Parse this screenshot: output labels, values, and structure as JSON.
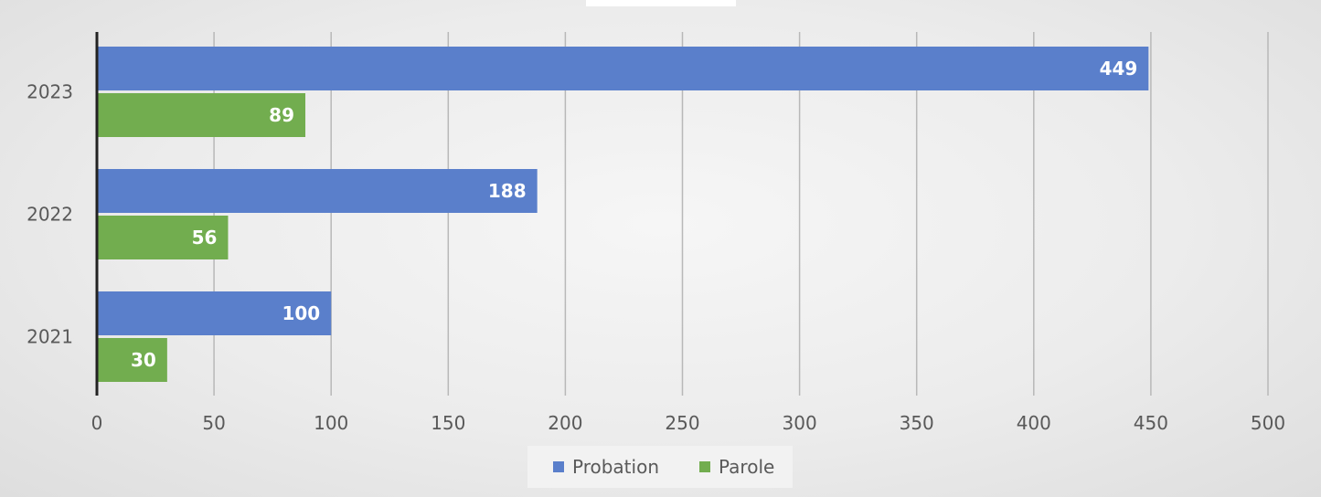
{
  "chart_data": {
    "type": "bar",
    "orientation": "horizontal",
    "categories": [
      "2023",
      "2022",
      "2021"
    ],
    "series": [
      {
        "name": "Probation",
        "values": [
          449,
          188,
          100
        ],
        "color": "#5a7fcb"
      },
      {
        "name": "Parole",
        "values": [
          89,
          56,
          30
        ],
        "color": "#72ad4f"
      }
    ],
    "xlim": [
      0,
      500
    ],
    "xticks": [
      0,
      50,
      100,
      150,
      200,
      250,
      300,
      350,
      400,
      450,
      500
    ],
    "grid": "vertical",
    "legend": "bottom",
    "data_labels": true,
    "title": "",
    "xlabel": "",
    "ylabel": ""
  }
}
